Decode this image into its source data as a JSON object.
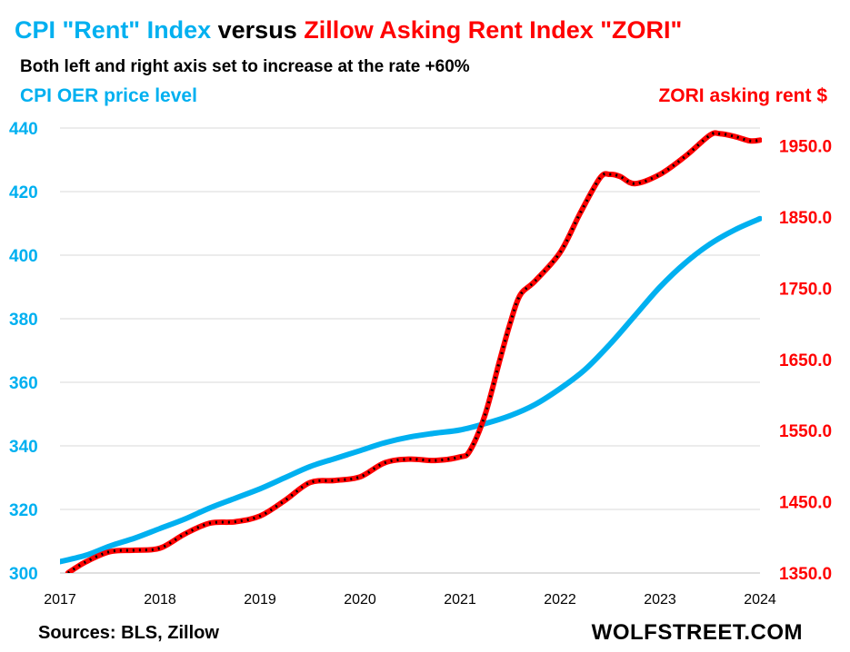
{
  "title": {
    "part1": "CPI \"Rent\" Index",
    "part2": " versus ",
    "part3": "Zillow Asking Rent Index \"ZORI\""
  },
  "subtitle": "Both left and right axis set to increase at the rate +60%",
  "left_axis_label": "CPI OER  price level",
  "right_axis_label": "ZORI asking rent $",
  "source": "Sources: BLS, Zillow",
  "brand": "WOLFSTREET.COM",
  "colors": {
    "cpi": "#00b0f0",
    "zori": "#ff0000",
    "zori_dots": "#000000",
    "grid": "#d9d9d9"
  },
  "chart_data": {
    "type": "line",
    "grid": true,
    "x_ticks": [
      "2017",
      "2018",
      "2019",
      "2020",
      "2021",
      "2022",
      "2023",
      "2024"
    ],
    "x_range": [
      2017.0,
      2024.0
    ],
    "y_left": {
      "range": [
        300,
        440
      ],
      "ticks": [
        "300",
        "320",
        "340",
        "360",
        "380",
        "400",
        "420",
        "440"
      ]
    },
    "y_right": {
      "range": [
        1350,
        1975
      ],
      "ticks": [
        "1350.0",
        "1450.0",
        "1550.0",
        "1650.0",
        "1750.0",
        "1850.0",
        "1950.0"
      ]
    },
    "series": [
      {
        "axis": "left",
        "color": "#00b0f0",
        "x": [
          2016.92,
          2017.25,
          2017.5,
          2017.75,
          2018.0,
          2018.25,
          2018.5,
          2018.75,
          2019.0,
          2019.25,
          2019.5,
          2019.75,
          2020.0,
          2020.25,
          2020.5,
          2020.75,
          2021.0,
          2021.25,
          2021.5,
          2021.75,
          2022.0,
          2022.25,
          2022.5,
          2022.75,
          2023.0,
          2023.25,
          2023.5,
          2023.75,
          2024.0
        ],
        "values": [
          303,
          305.5,
          308.5,
          311,
          314,
          317,
          320.5,
          323.5,
          326.5,
          330,
          333.5,
          336,
          338.5,
          341,
          342.8,
          344,
          345,
          347,
          349.5,
          353,
          358,
          364,
          372,
          381,
          390,
          397.5,
          403.5,
          408,
          411.5
        ]
      },
      {
        "axis": "right",
        "color": "#ff0000",
        "x": [
          2017.08,
          2017.25,
          2017.5,
          2017.75,
          2018.0,
          2018.25,
          2018.5,
          2018.75,
          2019.0,
          2019.25,
          2019.5,
          2019.75,
          2020.0,
          2020.25,
          2020.5,
          2020.75,
          2021.0,
          2021.1,
          2021.25,
          2021.4,
          2021.5,
          2021.6,
          2021.75,
          2022.0,
          2022.2,
          2022.4,
          2022.5,
          2022.6,
          2022.75,
          2023.0,
          2023.25,
          2023.5,
          2023.6,
          2023.75,
          2023.9,
          2024.0
        ],
        "values": [
          1350,
          1365,
          1380,
          1382,
          1385,
          1405,
          1420,
          1422,
          1430,
          1452,
          1477,
          1480,
          1485,
          1505,
          1510,
          1508,
          1513,
          1522,
          1572,
          1650,
          1700,
          1740,
          1760,
          1800,
          1855,
          1905,
          1910,
          1907,
          1897,
          1910,
          1935,
          1965,
          1967,
          1963,
          1957,
          1958
        ]
      }
    ]
  }
}
